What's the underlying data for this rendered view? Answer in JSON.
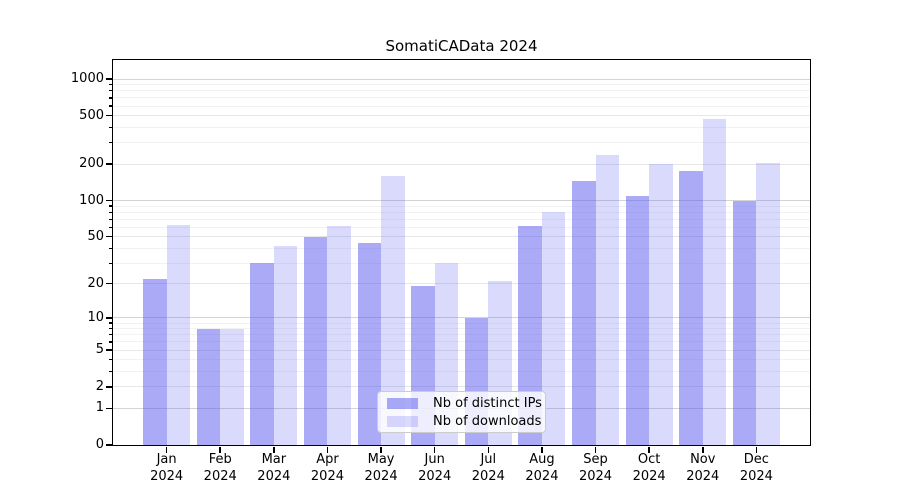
{
  "title": "SomatiCAData 2024",
  "chart_data": {
    "type": "bar",
    "title": "SomatiCAData 2024",
    "categories": [
      "Jan 2024",
      "Feb 2024",
      "Mar 2024",
      "Apr 2024",
      "May 2024",
      "Jun 2024",
      "Jul 2024",
      "Aug 2024",
      "Sep 2024",
      "Oct 2024",
      "Nov 2024",
      "Dec 2024"
    ],
    "series": [
      {
        "name": "Nb of distinct IPs",
        "color": "rgba(85,85,240,0.50)",
        "values": [
          22,
          8,
          30,
          50,
          44,
          19,
          10,
          61,
          144,
          108,
          176,
          100
        ]
      },
      {
        "name": "Nb of downloads",
        "color": "rgba(85,85,240,0.22)",
        "values": [
          63,
          8,
          42,
          61,
          160,
          30,
          21,
          81,
          237,
          202,
          470,
          205
        ]
      }
    ],
    "y_ticks": [
      0,
      1,
      2,
      5,
      10,
      20,
      50,
      100,
      200,
      500,
      1000
    ],
    "y_minor_ticks": [
      3,
      4,
      6,
      7,
      8,
      9,
      30,
      40,
      60,
      70,
      80,
      90,
      300,
      400,
      600,
      700,
      800,
      900
    ],
    "y_scale": "log1p",
    "ylim": [
      0,
      1434
    ],
    "grid": "horizontal",
    "legend_position": "lower center inside"
  },
  "colors": {
    "axis": "#000000",
    "grid_major": "#d4d4d4",
    "grid_minor": "#e7e7e7",
    "grid_faint": "#f2f2f2",
    "background": "#ffffff"
  }
}
